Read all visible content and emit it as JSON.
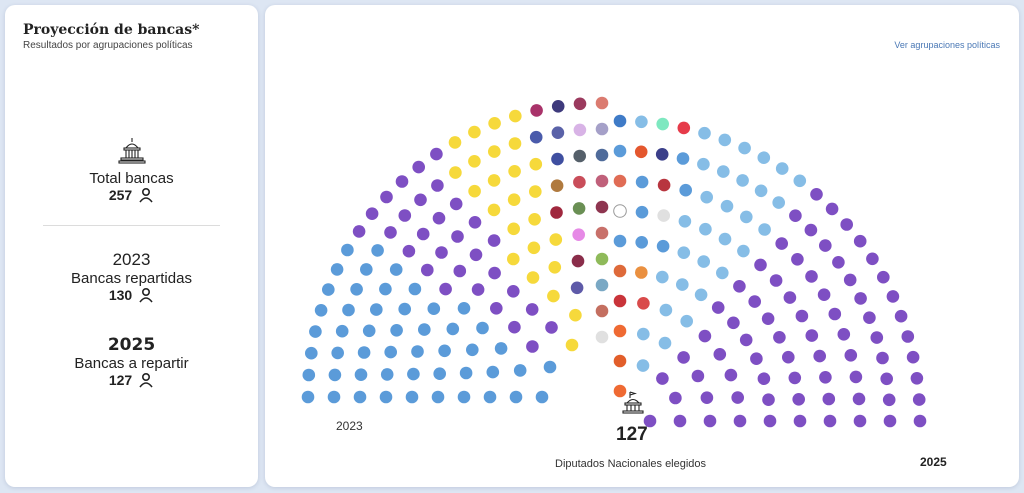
{
  "left_panel": {
    "title": "Proyección de bancas*",
    "subtitle": "Resultados por agrupaciones políticas",
    "total_label": "Total bancas",
    "total_value": "257",
    "year_2023": "2023",
    "repartidas_label": "Bancas repartidas",
    "repartidas_value": "130",
    "year_2025": "2025",
    "a_repartir_label": "Bancas a repartir",
    "a_repartir_value": "127"
  },
  "right_panel": {
    "link_label": "Ver agrupaciones políticas",
    "year_left": "2023",
    "year_right": "2025",
    "center_count": "127",
    "center_caption": "Diputados Nacionales elegidos"
  },
  "colors": {
    "blue_dark": "#5b9bd9",
    "blue_light": "#86bde6",
    "yellow": "#f6d93b",
    "purple": "#7e4fc3"
  },
  "chart_data": [
    {
      "type": "parliament",
      "label": "2023",
      "seat_count": 130,
      "seat_colors": [
        "#5b9bd9",
        "#5b9bd9",
        "#5b9bd9",
        "#5b9bd9",
        "#5b9bd9",
        "#5b9bd9",
        "#5b9bd9",
        "#5b9bd9",
        "#5b9bd9",
        "#5b9bd9",
        "#5b9bd9",
        "#5b9bd9",
        "#5b9bd9",
        "#5b9bd9",
        "#5b9bd9",
        "#5b9bd9",
        "#5b9bd9",
        "#5b9bd9",
        "#5b9bd9",
        "#5b9bd9",
        "#5b9bd9",
        "#5b9bd9",
        "#5b9bd9",
        "#5b9bd9",
        "#5b9bd9",
        "#5b9bd9",
        "#5b9bd9",
        "#5b9bd9",
        "#5b9bd9",
        "#5b9bd9",
        "#5b9bd9",
        "#5b9bd9",
        "#5b9bd9",
        "#5b9bd9",
        "#5b9bd9",
        "#5b9bd9",
        "#5b9bd9",
        "#5b9bd9",
        "#5b9bd9",
        "#5b9bd9",
        "#5b9bd9",
        "#5b9bd9",
        "#5b9bd9",
        "#5b9bd9",
        "#5b9bd9",
        "#5b9bd9",
        "#5b9bd9",
        "#5b9bd9",
        "#5b9bd9",
        "#5b9bd9",
        "#7e4fc3",
        "#7e4fc3",
        "#7e4fc3",
        "#7e4fc3",
        "#7e4fc3",
        "#7e4fc3",
        "#7e4fc3",
        "#7e4fc3",
        "#7e4fc3",
        "#7e4fc3",
        "#7e4fc3",
        "#7e4fc3",
        "#7e4fc3",
        "#7e4fc3",
        "#7e4fc3",
        "#7e4fc3",
        "#7e4fc3",
        "#7e4fc3",
        "#7e4fc3",
        "#7e4fc3",
        "#7e4fc3",
        "#7e4fc3",
        "#7e4fc3",
        "#7e4fc3",
        "#7e4fc3",
        "#7e4fc3",
        "#7e4fc3",
        "#7e4fc3",
        "#7e4fc3",
        "#7e4fc3",
        "#f6d93b",
        "#f6d93b",
        "#f6d93b",
        "#f6d93b",
        "#f6d93b",
        "#f6d93b",
        "#f6d93b",
        "#f6d93b",
        "#f6d93b",
        "#f6d93b",
        "#f6d93b",
        "#f6d93b",
        "#f6d93b",
        "#f6d93b",
        "#f6d93b",
        "#f6d93b",
        "#f6d93b",
        "#f6d93b",
        "#f6d93b",
        "#f6d93b",
        "#f6d93b",
        "#f6d93b",
        "#f6d93b",
        "#f6d93b",
        "#f6d93b",
        "#4a5bab",
        "#a0283e",
        "#5e5aa8",
        "#a9336a",
        "#b07a3e",
        "#3f4fa0",
        "#8a2d4a",
        "#5a62a8",
        "#3e3a7c",
        "#e68ae6",
        "#6a8f54",
        "#c94d5a",
        "#55606a",
        "#d8b3e6",
        "#9b3a5e",
        "#e0e0e0",
        "#c46f60",
        "#7aa8c4",
        "#8fba5a",
        "#c8706a",
        "#8e3550",
        "#c0607a",
        "#4f6b9a",
        "#a5a0c8",
        "#db7b70"
      ]
    },
    {
      "type": "parliament",
      "label": "2025",
      "seat_count": 127,
      "seat_colors": [
        "#ef6a33",
        "#e25e2a",
        "#ef6a33",
        "#c9343a",
        "#de6a3a",
        "#5b9bd9",
        "#ffffff",
        "#e06c55",
        "#5b9bd9",
        "#3f7bc7",
        "#86bde6",
        "#e4572e",
        "#5b9bd9",
        "#5b9bd9",
        "#5b9bd9",
        "#ea9040",
        "#7ee8c0",
        "#3b3f8a",
        "#b8353f",
        "#d94b4b",
        "#e0e0e0",
        "#e63b4a",
        "#5b9bd9",
        "#5b9bd9",
        "#86bde6",
        "#5b9bd9",
        "#86bde6",
        "#86bde6",
        "#86bde6",
        "#86bde6",
        "#86bde6",
        "#86bde6",
        "#86bde6",
        "#86bde6",
        "#86bde6",
        "#86bde6",
        "#86bde6",
        "#86bde6",
        "#86bde6",
        "#86bde6",
        "#86bde6",
        "#86bde6",
        "#86bde6",
        "#86bde6",
        "#86bde6",
        "#86bde6",
        "#86bde6",
        "#86bde6",
        "#86bde6",
        "#86bde6",
        "#86bde6",
        "#86bde6",
        "#86bde6",
        "#86bde6",
        "#86bde6",
        "#7e4fc3",
        "#7e4fc3",
        "#7e4fc3",
        "#7e4fc3",
        "#7e4fc3",
        "#7e4fc3",
        "#7e4fc3",
        "#7e4fc3",
        "#7e4fc3",
        "#7e4fc3",
        "#7e4fc3",
        "#7e4fc3",
        "#7e4fc3",
        "#7e4fc3",
        "#7e4fc3",
        "#7e4fc3",
        "#7e4fc3",
        "#7e4fc3",
        "#7e4fc3",
        "#7e4fc3",
        "#7e4fc3",
        "#7e4fc3",
        "#7e4fc3",
        "#7e4fc3",
        "#7e4fc3",
        "#7e4fc3",
        "#7e4fc3",
        "#7e4fc3",
        "#7e4fc3",
        "#7e4fc3",
        "#7e4fc3",
        "#7e4fc3",
        "#7e4fc3",
        "#7e4fc3",
        "#7e4fc3",
        "#7e4fc3",
        "#7e4fc3",
        "#7e4fc3",
        "#7e4fc3",
        "#7e4fc3",
        "#7e4fc3",
        "#7e4fc3",
        "#7e4fc3",
        "#7e4fc3",
        "#7e4fc3",
        "#7e4fc3",
        "#7e4fc3",
        "#7e4fc3",
        "#7e4fc3",
        "#7e4fc3",
        "#7e4fc3",
        "#7e4fc3",
        "#7e4fc3",
        "#7e4fc3",
        "#7e4fc3",
        "#7e4fc3",
        "#7e4fc3",
        "#7e4fc3",
        "#7e4fc3",
        "#7e4fc3",
        "#7e4fc3",
        "#7e4fc3",
        "#7e4fc3",
        "#7e4fc3",
        "#7e4fc3",
        "#7e4fc3",
        "#7e4fc3",
        "#7e4fc3",
        "#7e4fc3",
        "#7e4fc3",
        "#7e4fc3",
        "#7e4fc3"
      ]
    }
  ]
}
